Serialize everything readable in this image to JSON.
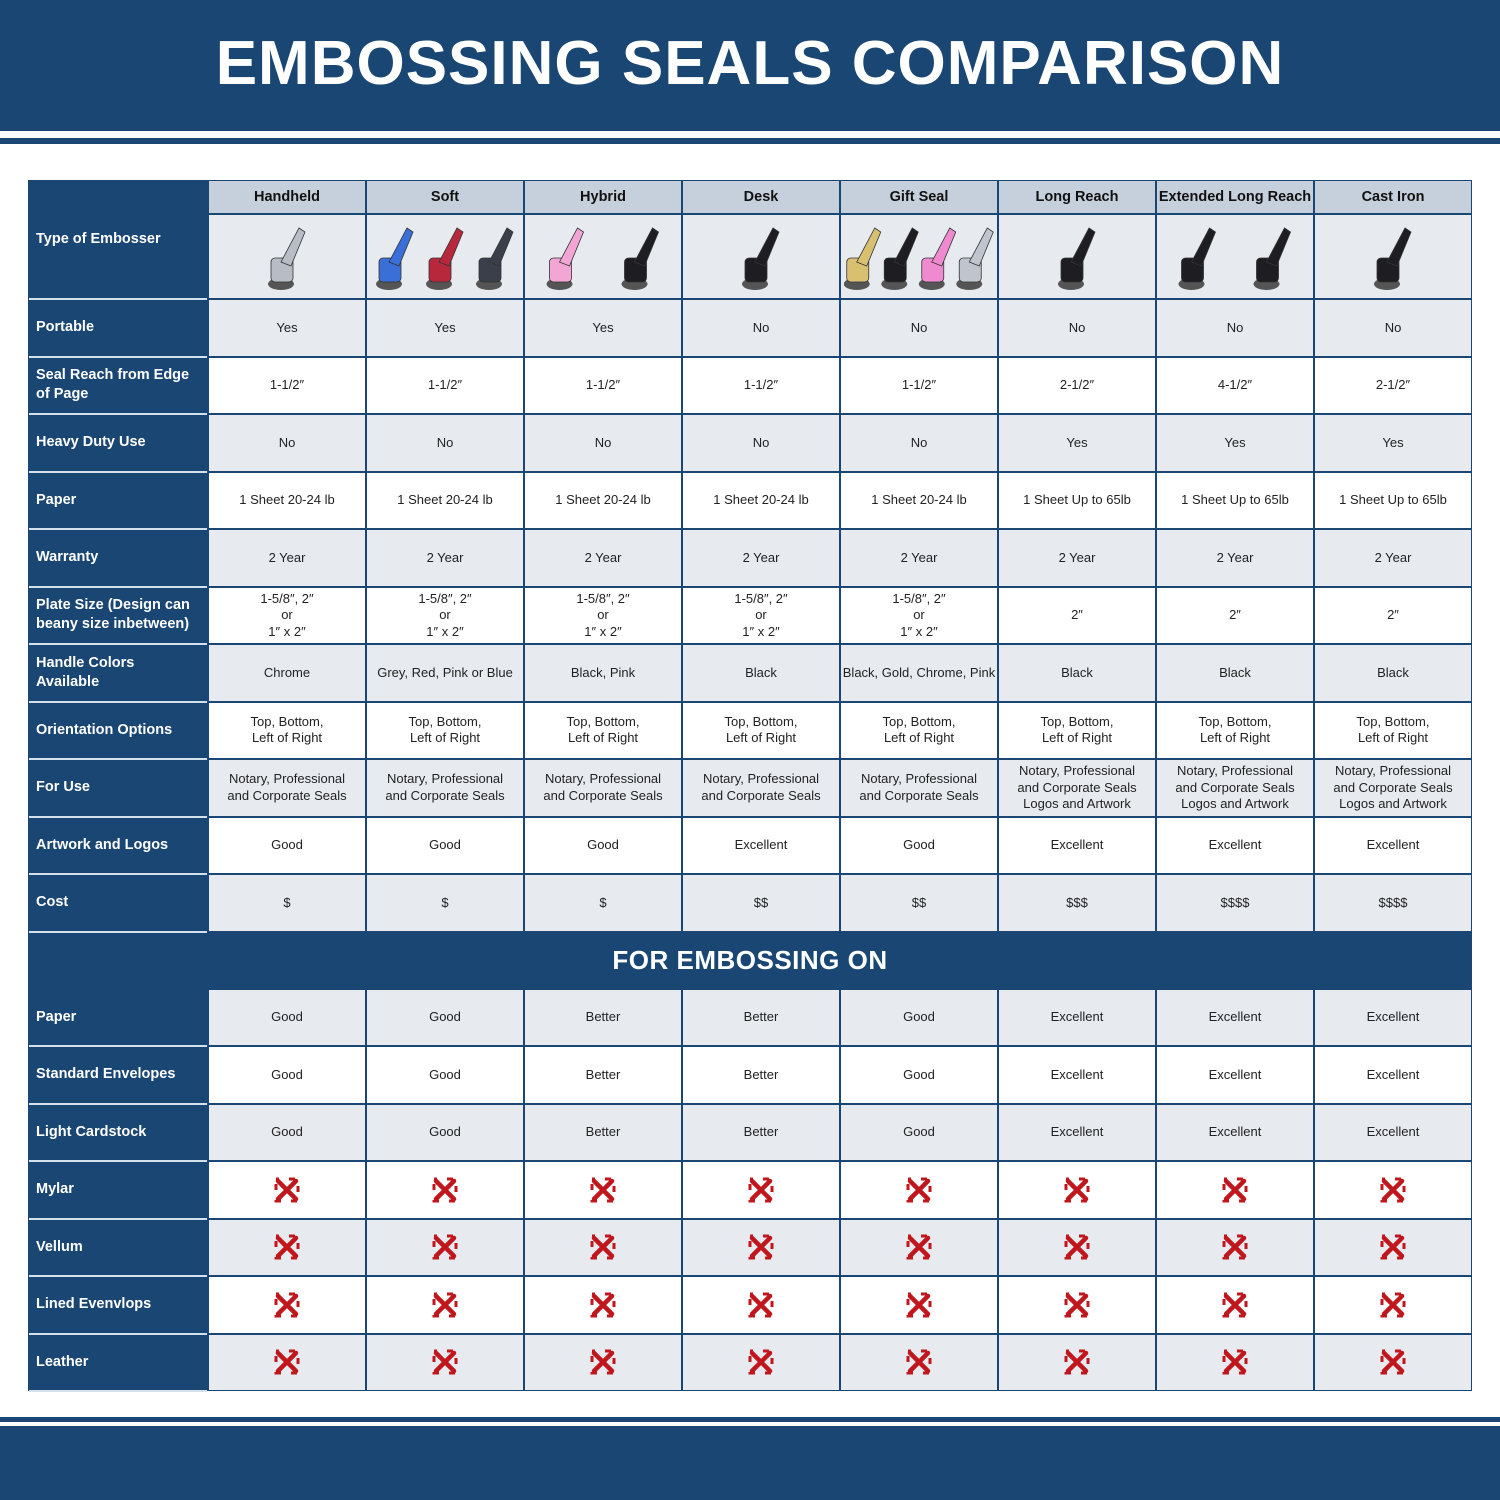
{
  "title": "EMBOSSING SEALS COMPARISON",
  "corner_label": "Type of Embosser",
  "columns": [
    {
      "name": "Handheld",
      "image_colors": [
        "#b8bcc4"
      ]
    },
    {
      "name": "Soft",
      "image_colors": [
        "#3a6fd8",
        "#b8283c",
        "#3a3f4a"
      ]
    },
    {
      "name": "Hybrid",
      "image_colors": [
        "#f3a6d6",
        "#1e1e22"
      ]
    },
    {
      "name": "Desk",
      "image_colors": [
        "#1e1e22"
      ]
    },
    {
      "name": "Gift Seal",
      "image_colors": [
        "#d8c070",
        "#1e1e22",
        "#f08ad0",
        "#c0c4cc"
      ]
    },
    {
      "name": "Long Reach",
      "image_colors": [
        "#1e1e22"
      ]
    },
    {
      "name": "Extended Long Reach",
      "image_colors": [
        "#1e1e22",
        "#1e1e22"
      ]
    },
    {
      "name": "Cast Iron",
      "image_colors": [
        "#1e1e22"
      ]
    }
  ],
  "rows": [
    {
      "label": "Portable",
      "values": [
        "Yes",
        "Yes",
        "Yes",
        "No",
        "No",
        "No",
        "No",
        "No"
      ]
    },
    {
      "label": "Seal Reach from Edge of Page",
      "values": [
        "1-1/2″",
        "1-1/2″",
        "1-1/2″",
        "1-1/2″",
        "1-1/2″",
        "2-1/2″",
        "4-1/2″",
        "2-1/2″"
      ]
    },
    {
      "label": "Heavy Duty Use",
      "values": [
        "No",
        "No",
        "No",
        "No",
        "No",
        "Yes",
        "Yes",
        "Yes"
      ]
    },
    {
      "label": "Paper",
      "values": [
        "1 Sheet 20-24 lb",
        "1 Sheet 20-24 lb",
        "1 Sheet 20-24 lb",
        "1 Sheet 20-24 lb",
        "1 Sheet 20-24 lb",
        "1 Sheet Up to 65lb",
        "1 Sheet Up to 65lb",
        "1 Sheet Up to 65lb"
      ]
    },
    {
      "label": "Warranty",
      "values": [
        "2 Year",
        "2 Year",
        "2 Year",
        "2 Year",
        "2 Year",
        "2 Year",
        "2 Year",
        "2 Year"
      ]
    },
    {
      "label": "Plate Size (Design can beany size inbetween)",
      "values": [
        "1-5/8″, 2″\nor\n1″ x 2″",
        "1-5/8″, 2″\nor\n1″ x 2″",
        "1-5/8″, 2″\nor\n1″ x 2″",
        "1-5/8″, 2″\nor\n1″ x 2″",
        "1-5/8″, 2″\nor\n1″ x 2″",
        "2″",
        "2″",
        "2″"
      ]
    },
    {
      "label": "Handle Colors Available",
      "values": [
        "Chrome",
        "Grey, Red, Pink or Blue",
        "Black, Pink",
        "Black",
        "Black, Gold, Chrome, Pink",
        "Black",
        "Black",
        "Black"
      ]
    },
    {
      "label": "Orientation Options",
      "values": [
        "Top, Bottom,\nLeft of Right",
        "Top, Bottom,\nLeft of Right",
        "Top, Bottom,\nLeft of Right",
        "Top, Bottom,\nLeft of Right",
        "Top, Bottom,\nLeft of Right",
        "Top, Bottom,\nLeft of Right",
        "Top, Bottom,\nLeft of Right",
        "Top, Bottom,\nLeft of Right"
      ]
    },
    {
      "label": "For Use",
      "values": [
        "Notary, Professional\nand Corporate Seals",
        "Notary, Professional\nand Corporate Seals",
        "Notary, Professional\nand Corporate Seals",
        "Notary, Professional\nand Corporate Seals",
        "Notary, Professional\nand Corporate Seals",
        "Notary, Professional\nand Corporate Seals\nLogos and Artwork",
        "Notary, Professional\nand Corporate Seals\nLogos and Artwork",
        "Notary, Professional\nand Corporate Seals\nLogos and Artwork"
      ]
    },
    {
      "label": "Artwork and Logos",
      "values": [
        "Good",
        "Good",
        "Good",
        "Excellent",
        "Good",
        "Excellent",
        "Excellent",
        "Excellent"
      ]
    },
    {
      "label": "Cost",
      "values": [
        "$",
        "$",
        "$",
        "$$",
        "$$",
        "$$$",
        "$$$$",
        "$$$$"
      ]
    }
  ],
  "section_title": "FOR EMBOSSING ON",
  "section_rows": [
    {
      "label": "Paper",
      "values": [
        "Good",
        "Good",
        "Better",
        "Better",
        "Good",
        "Excellent",
        "Excellent",
        "Excellent"
      ]
    },
    {
      "label": "Standard Envelopes",
      "values": [
        "Good",
        "Good",
        "Better",
        "Better",
        "Good",
        "Excellent",
        "Excellent",
        "Excellent"
      ]
    },
    {
      "label": "Light Cardstock",
      "values": [
        "Good",
        "Good",
        "Better",
        "Better",
        "Good",
        "Excellent",
        "Excellent",
        "Excellent"
      ]
    },
    {
      "label": "Mylar",
      "values": [
        "x-icon",
        "x-icon",
        "x-icon",
        "x-icon",
        "x-icon",
        "x-icon",
        "x-icon",
        "x-icon"
      ]
    },
    {
      "label": "Vellum",
      "values": [
        "x-icon",
        "x-icon",
        "x-icon",
        "x-icon",
        "x-icon",
        "x-icon",
        "x-icon",
        "x-icon"
      ]
    },
    {
      "label": "Lined Evenvlops",
      "values": [
        "x-icon",
        "x-icon",
        "x-icon",
        "x-icon",
        "x-icon",
        "x-icon",
        "x-icon",
        "x-icon"
      ]
    },
    {
      "label": "Leather",
      "values": [
        "x-icon",
        "x-icon",
        "x-icon",
        "x-icon",
        "x-icon",
        "x-icon",
        "x-icon",
        "x-icon"
      ]
    }
  ],
  "colors": {
    "navy": "#1a4674",
    "row_light": "#e7ebf0",
    "header_grey": "#c5d0dc",
    "x_red": "#c0161c"
  }
}
